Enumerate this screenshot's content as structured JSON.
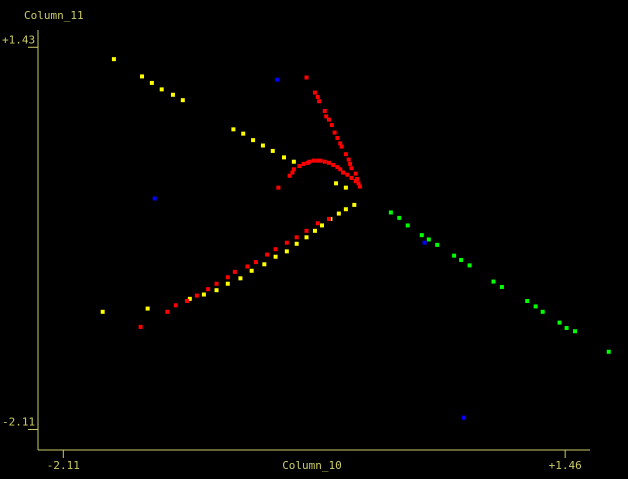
{
  "chart_data": {
    "type": "scatter",
    "x_label": "Column_10",
    "y_label": "Column_11",
    "xlim": [
      -2.29,
      1.85
    ],
    "ylim": [
      -2.3,
      1.59
    ],
    "xticks": [
      -2.11,
      {
        "value": 1.46,
        "label": "+1.46"
      }
    ],
    "yticks": [
      {
        "value": 1.43,
        "label": "+1.43"
      },
      -2.11
    ],
    "series": [
      {
        "color": "#ffff00",
        "x": [
          -1.75,
          -1.55,
          -1.48,
          -1.41,
          -1.33,
          -1.26,
          -0.9,
          -0.83,
          -0.76,
          -0.69,
          -0.62,
          -0.54,
          -0.47,
          -0.17,
          -0.1,
          -0.04,
          -0.1,
          -0.15,
          -0.21,
          -0.27,
          -0.32,
          -0.38,
          -0.45,
          -0.52,
          -0.6,
          -0.68,
          -0.77,
          -0.85,
          -0.94,
          -1.02,
          -1.11,
          -1.21,
          -1.51,
          -1.83
        ],
        "y": [
          1.32,
          1.16,
          1.1,
          1.04,
          0.99,
          0.94,
          0.67,
          0.63,
          0.57,
          0.52,
          0.47,
          0.41,
          0.37,
          0.17,
          0.13,
          -0.03,
          -0.07,
          -0.11,
          -0.16,
          -0.22,
          -0.27,
          -0.33,
          -0.39,
          -0.46,
          -0.51,
          -0.58,
          -0.64,
          -0.71,
          -0.76,
          -0.82,
          -0.86,
          -0.9,
          -0.99,
          -1.02
        ]
      },
      {
        "color": "#ff0000",
        "x": [
          -0.38,
          -0.32,
          -0.3,
          -0.29,
          -0.25,
          -0.24,
          -0.22,
          -0.2,
          -0.18,
          -0.16,
          -0.14,
          -0.13,
          -0.1,
          -0.08,
          -0.07,
          -0.06,
          -0.03,
          -0.02,
          -0.01,
          0.0,
          -0.58,
          -0.5,
          -0.48,
          -0.47,
          -0.43,
          -0.4,
          -0.37,
          -0.36,
          -0.33,
          -0.3,
          -0.28,
          -0.25,
          -0.22,
          -0.19,
          -0.16,
          -0.14,
          -0.12,
          -0.09,
          -0.06,
          -0.03,
          -1.56,
          -1.37,
          -1.31,
          -1.23,
          -1.16,
          -1.08,
          -1.02,
          -0.94,
          -0.89,
          -0.8,
          -0.74,
          -0.66,
          -0.6,
          -0.52,
          -0.45,
          -0.38,
          -0.3,
          -0.22
        ],
        "y": [
          1.15,
          1.01,
          0.97,
          0.93,
          0.84,
          0.79,
          0.76,
          0.71,
          0.64,
          0.59,
          0.54,
          0.51,
          0.44,
          0.39,
          0.35,
          0.31,
          0.26,
          0.21,
          0.17,
          0.14,
          0.13,
          0.24,
          0.27,
          0.3,
          0.33,
          0.35,
          0.36,
          0.37,
          0.38,
          0.38,
          0.38,
          0.37,
          0.36,
          0.34,
          0.32,
          0.3,
          0.27,
          0.25,
          0.22,
          0.19,
          -1.16,
          -1.02,
          -0.96,
          -0.92,
          -0.87,
          -0.81,
          -0.76,
          -0.7,
          -0.65,
          -0.6,
          -0.56,
          -0.49,
          -0.44,
          -0.38,
          -0.33,
          -0.27,
          -0.2,
          -0.16
        ]
      },
      {
        "color": "#00ff00",
        "x": [
          0.22,
          0.28,
          0.34,
          0.44,
          0.49,
          0.55,
          0.67,
          0.72,
          0.78,
          0.95,
          1.01,
          1.19,
          1.25,
          1.3,
          1.42,
          1.47,
          1.53,
          1.77
        ],
        "y": [
          -0.1,
          -0.15,
          -0.22,
          -0.31,
          -0.35,
          -0.4,
          -0.5,
          -0.54,
          -0.59,
          -0.74,
          -0.79,
          -0.92,
          -0.97,
          -1.02,
          -1.12,
          -1.17,
          -1.2,
          -1.39
        ]
      },
      {
        "color": "#0000ff",
        "x": [
          -0.59,
          -1.46,
          0.46,
          0.74
        ],
        "y": [
          1.13,
          0.03,
          -0.38,
          -2.0
        ]
      }
    ]
  }
}
